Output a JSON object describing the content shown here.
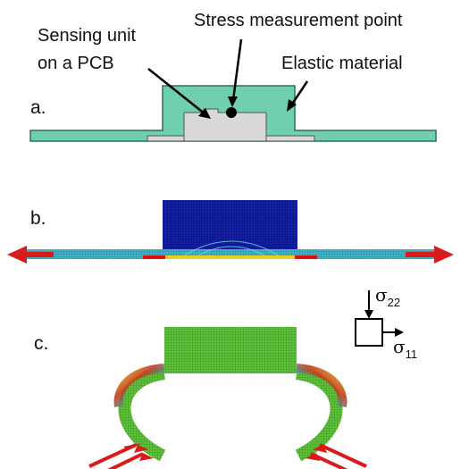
{
  "labels": {
    "sensing_unit_line1": "Sensing unit",
    "sensing_unit_line2": "on a PCB",
    "stress_point": "Stress measurement point",
    "elastic_material": "Elastic material"
  },
  "panels": {
    "a": "a.",
    "b": "b.",
    "c": "c."
  },
  "stress_legend": {
    "s22_symbol": "σ",
    "s22_sub": "22",
    "s11_symbol": "σ",
    "s11_sub": "11"
  },
  "colors": {
    "elastic_material": "#6fcfb0",
    "sensing_unit": "#d8d8d8",
    "mesh_dark_blue": "#0b1690",
    "mesh_cyan": "#39b7c7",
    "mesh_green": "#5ec23a",
    "mesh_red": "#d81010",
    "mesh_yellow": "#e5d020",
    "arrow_red": "#d81b1b"
  }
}
